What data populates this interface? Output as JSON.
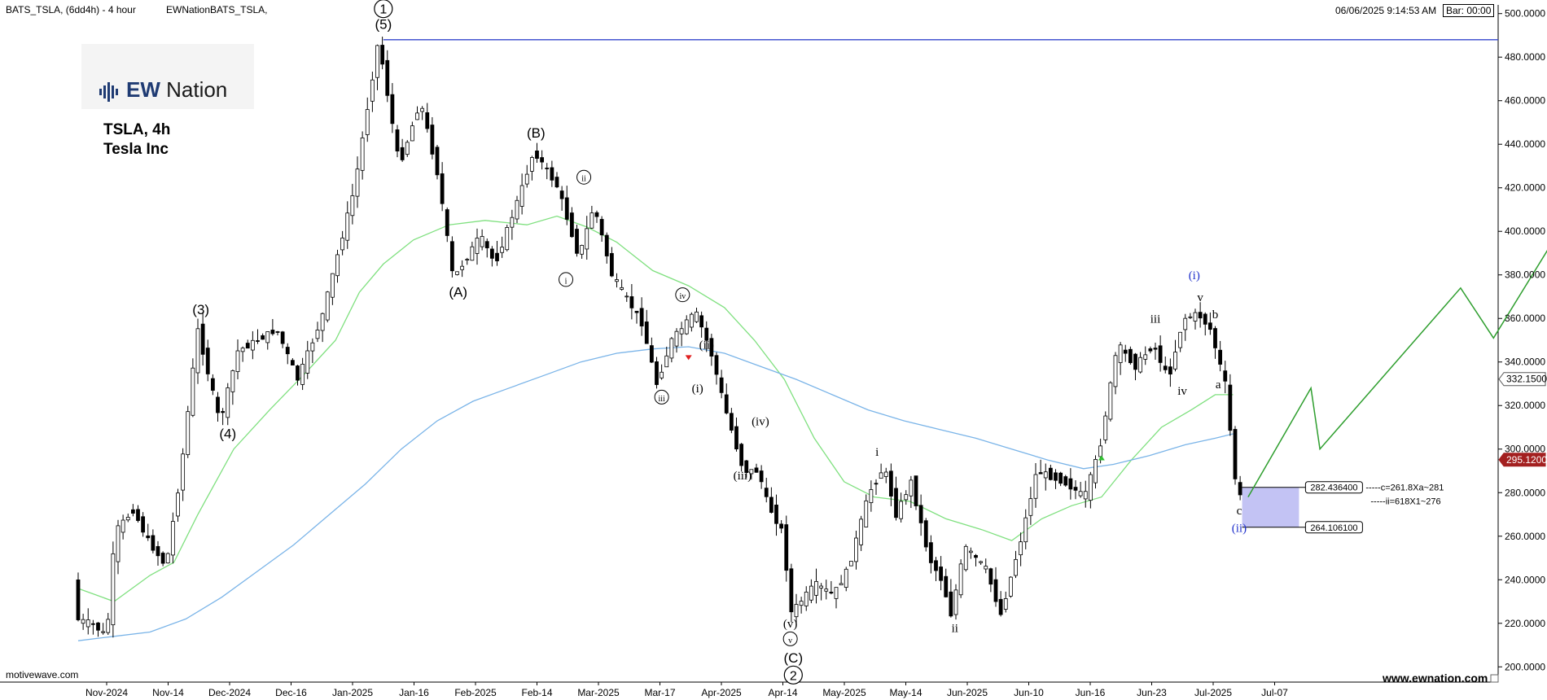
{
  "header": {
    "symbol": "BATS_TSLA, (6dd4h) - 4 hour",
    "source": "EWNationBATS_TSLA,",
    "datetime": "06/06/2025 9:14:53 AM",
    "bar_timer": "Bar: 00:00"
  },
  "logo": {
    "brand_ew": "EW",
    "brand_name": " Nation"
  },
  "ticker": {
    "line1": "TSLA, 4h",
    "line2": "Tesla Inc"
  },
  "footer": {
    "left": "motivewave.com",
    "right": "www.ewnation.com"
  },
  "colors": {
    "candle": "#000000",
    "ma_green": "#7fe07f",
    "ma_blue": "#7ab4e8",
    "projection": "#2e9e2e",
    "top_line": "#3344cc",
    "zone": "#b8b8f2",
    "current_price": "#a32020",
    "blue_label": "#2233cc"
  },
  "chart_data": {
    "type": "candlestick",
    "x_axis_labels": [
      "Nov-2024",
      "Nov-14",
      "Dec-2024",
      "Dec-16",
      "Jan-2025",
      "Jan-16",
      "Feb-2025",
      "Feb-14",
      "Mar-2025",
      "Mar-17",
      "Apr-2025",
      "Apr-14",
      "May-2025",
      "May-14",
      "Jun-2025",
      "Jun-10",
      "Jun-16",
      "Jun-23",
      "Jul-2025",
      "Jul-07"
    ],
    "y_axis_labels": [
      "500.0000",
      "480.0000",
      "460.0000",
      "440.0000",
      "420.0000",
      "400.0000",
      "380.0000",
      "360.0000",
      "340.0000",
      "320.0000",
      "300.0000",
      "280.0000",
      "260.0000",
      "240.0000",
      "220.0000",
      "200.0000"
    ],
    "ylim": [
      193,
      504
    ],
    "price_path": [
      {
        "t": 0,
        "p": 240
      },
      {
        "t": 0.02,
        "p": 222
      },
      {
        "t": 0.3,
        "p": 220
      },
      {
        "t": 0.56,
        "p": 214
      },
      {
        "t": 0.7,
        "p": 262
      },
      {
        "t": 1.0,
        "p": 272
      },
      {
        "t": 1.25,
        "p": 258
      },
      {
        "t": 1.55,
        "p": 246
      },
      {
        "t": 1.8,
        "p": 290
      },
      {
        "t": 2.08,
        "p": 355
      },
      {
        "t": 2.45,
        "p": 312
      },
      {
        "t": 2.75,
        "p": 345
      },
      {
        "t": 3.4,
        "p": 355
      },
      {
        "t": 3.75,
        "p": 332
      },
      {
        "t": 4.15,
        "p": 360
      },
      {
        "t": 4.7,
        "p": 420
      },
      {
        "t": 5.1,
        "p": 488
      },
      {
        "t": 5.45,
        "p": 430
      },
      {
        "t": 5.8,
        "p": 460
      },
      {
        "t": 6.1,
        "p": 425
      },
      {
        "t": 6.35,
        "p": 378
      },
      {
        "t": 6.8,
        "p": 398
      },
      {
        "t": 7.05,
        "p": 385
      },
      {
        "t": 7.5,
        "p": 420
      },
      {
        "t": 7.7,
        "p": 437
      },
      {
        "t": 8.1,
        "p": 420
      },
      {
        "t": 8.45,
        "p": 388
      },
      {
        "t": 8.7,
        "p": 412
      },
      {
        "t": 9.0,
        "p": 380
      },
      {
        "t": 9.5,
        "p": 358
      },
      {
        "t": 9.75,
        "p": 330
      },
      {
        "t": 10.0,
        "p": 350
      },
      {
        "t": 10.4,
        "p": 363
      },
      {
        "t": 10.65,
        "p": 345
      },
      {
        "t": 10.9,
        "p": 318
      },
      {
        "t": 11.2,
        "p": 290
      },
      {
        "t": 11.45,
        "p": 290
      },
      {
        "t": 11.6,
        "p": 275
      },
      {
        "t": 11.85,
        "p": 262
      },
      {
        "t": 12.0,
        "p": 225
      },
      {
        "t": 12.4,
        "p": 238
      },
      {
        "t": 12.7,
        "p": 233
      },
      {
        "t": 12.95,
        "p": 245
      },
      {
        "t": 13.3,
        "p": 280
      },
      {
        "t": 13.55,
        "p": 292
      },
      {
        "t": 13.75,
        "p": 270
      },
      {
        "t": 14.0,
        "p": 285
      },
      {
        "t": 14.3,
        "p": 250
      },
      {
        "t": 14.55,
        "p": 238
      },
      {
        "t": 14.65,
        "p": 222
      },
      {
        "t": 14.9,
        "p": 255
      },
      {
        "t": 15.25,
        "p": 245
      },
      {
        "t": 15.5,
        "p": 224
      },
      {
        "t": 15.85,
        "p": 260
      },
      {
        "t": 16.1,
        "p": 290
      },
      {
        "t": 16.55,
        "p": 285
      },
      {
        "t": 16.9,
        "p": 278
      },
      {
        "t": 17.15,
        "p": 300
      },
      {
        "t": 17.45,
        "p": 348
      },
      {
        "t": 17.75,
        "p": 338
      },
      {
        "t": 18.05,
        "p": 348
      },
      {
        "t": 18.3,
        "p": 332
      },
      {
        "t": 18.55,
        "p": 360
      },
      {
        "t": 18.8,
        "p": 362
      },
      {
        "t": 19.0,
        "p": 355
      },
      {
        "t": 19.25,
        "p": 330
      },
      {
        "t": 19.45,
        "p": 278
      }
    ],
    "ma_green": [
      {
        "t": 0,
        "p": 236
      },
      {
        "t": 0.6,
        "p": 230
      },
      {
        "t": 1.2,
        "p": 242
      },
      {
        "t": 1.6,
        "p": 248
      },
      {
        "t": 2.0,
        "p": 270
      },
      {
        "t": 2.6,
        "p": 300
      },
      {
        "t": 3.2,
        "p": 318
      },
      {
        "t": 3.8,
        "p": 335
      },
      {
        "t": 4.3,
        "p": 350
      },
      {
        "t": 4.7,
        "p": 372
      },
      {
        "t": 5.1,
        "p": 385
      },
      {
        "t": 5.6,
        "p": 396
      },
      {
        "t": 6.2,
        "p": 403
      },
      {
        "t": 6.8,
        "p": 405
      },
      {
        "t": 7.5,
        "p": 403
      },
      {
        "t": 8.0,
        "p": 407
      },
      {
        "t": 8.5,
        "p": 402
      },
      {
        "t": 9.0,
        "p": 395
      },
      {
        "t": 9.6,
        "p": 382
      },
      {
        "t": 10.2,
        "p": 375
      },
      {
        "t": 10.8,
        "p": 365
      },
      {
        "t": 11.3,
        "p": 350
      },
      {
        "t": 11.8,
        "p": 332
      },
      {
        "t": 12.3,
        "p": 305
      },
      {
        "t": 12.8,
        "p": 285
      },
      {
        "t": 13.3,
        "p": 278
      },
      {
        "t": 13.9,
        "p": 276
      },
      {
        "t": 14.5,
        "p": 268
      },
      {
        "t": 15.1,
        "p": 263
      },
      {
        "t": 15.6,
        "p": 258
      },
      {
        "t": 16.1,
        "p": 268
      },
      {
        "t": 16.6,
        "p": 274
      },
      {
        "t": 17.1,
        "p": 278
      },
      {
        "t": 17.6,
        "p": 295
      },
      {
        "t": 18.1,
        "p": 310
      },
      {
        "t": 18.6,
        "p": 318
      },
      {
        "t": 19.0,
        "p": 325
      },
      {
        "t": 19.3,
        "p": 325
      }
    ],
    "ma_blue": [
      {
        "t": 0,
        "p": 212
      },
      {
        "t": 0.6,
        "p": 214
      },
      {
        "t": 1.2,
        "p": 216
      },
      {
        "t": 1.8,
        "p": 222
      },
      {
        "t": 2.4,
        "p": 232
      },
      {
        "t": 3.0,
        "p": 244
      },
      {
        "t": 3.6,
        "p": 256
      },
      {
        "t": 4.2,
        "p": 270
      },
      {
        "t": 4.8,
        "p": 284
      },
      {
        "t": 5.4,
        "p": 300
      },
      {
        "t": 6.0,
        "p": 313
      },
      {
        "t": 6.6,
        "p": 322
      },
      {
        "t": 7.2,
        "p": 328
      },
      {
        "t": 7.8,
        "p": 334
      },
      {
        "t": 8.4,
        "p": 340
      },
      {
        "t": 9.0,
        "p": 344
      },
      {
        "t": 9.6,
        "p": 346
      },
      {
        "t": 10.2,
        "p": 347
      },
      {
        "t": 10.8,
        "p": 344
      },
      {
        "t": 11.4,
        "p": 338
      },
      {
        "t": 12.0,
        "p": 332
      },
      {
        "t": 12.6,
        "p": 325
      },
      {
        "t": 13.2,
        "p": 318
      },
      {
        "t": 13.8,
        "p": 313
      },
      {
        "t": 14.4,
        "p": 309
      },
      {
        "t": 15.0,
        "p": 305
      },
      {
        "t": 15.6,
        "p": 300
      },
      {
        "t": 16.2,
        "p": 295
      },
      {
        "t": 16.8,
        "p": 291
      },
      {
        "t": 17.3,
        "p": 293
      },
      {
        "t": 17.9,
        "p": 297
      },
      {
        "t": 18.5,
        "p": 302
      },
      {
        "t": 19.0,
        "p": 305
      },
      {
        "t": 19.3,
        "p": 307
      }
    ],
    "projection": [
      {
        "t": 19.55,
        "p": 278
      },
      {
        "t": 20.6,
        "p": 328
      },
      {
        "t": 20.75,
        "p": 300
      },
      {
        "t": 23.1,
        "p": 374
      },
      {
        "t": 23.65,
        "p": 351
      },
      {
        "t": 25.15,
        "p": 418
      }
    ],
    "top_line": {
      "price": 488,
      "t_start": 5.1,
      "t_end": 27.5
    },
    "target_zone": {
      "t_start": 19.45,
      "t_end": 20.4,
      "top": 282.4364,
      "bottom": 264.1061,
      "top_label": "282.436400",
      "bottom_label": "264.106100"
    },
    "zone_notes": [
      "-----c=261.8Xa~281",
      "-----ii=618X1~276"
    ],
    "price_tags": [
      {
        "price": 332.15,
        "label": "332.1500",
        "style": "gray"
      },
      {
        "price": 295.12,
        "label": "295.1200",
        "style": "red"
      }
    ],
    "markers": [
      {
        "t": 10.2,
        "p": 342,
        "shape": "down-triangle",
        "color": "#e02020"
      },
      {
        "t": 17.1,
        "p": 296,
        "shape": "up-triangle",
        "color": "#30c030"
      }
    ],
    "wave_labels": [
      {
        "text": "1",
        "t": 5.1,
        "p": 500,
        "style": "circle-lg"
      },
      {
        "text": "(5)",
        "t": 5.1,
        "p": 493,
        "style": "paren"
      },
      {
        "text": "(3)",
        "t": 2.05,
        "p": 362,
        "style": "paren"
      },
      {
        "text": "(4)",
        "t": 2.5,
        "p": 305,
        "style": "paren"
      },
      {
        "text": "(A)",
        "t": 6.35,
        "p": 370,
        "style": "paren"
      },
      {
        "text": "(B)",
        "t": 7.65,
        "p": 443,
        "style": "paren"
      },
      {
        "text": "ii",
        "t": 8.45,
        "p": 423,
        "style": "circle"
      },
      {
        "text": "i",
        "t": 8.15,
        "p": 376,
        "style": "circle"
      },
      {
        "text": "iv",
        "t": 10.1,
        "p": 369,
        "style": "circle"
      },
      {
        "text": "iii",
        "t": 9.75,
        "p": 322,
        "style": "circle"
      },
      {
        "text": "(ii)",
        "t": 10.5,
        "p": 346,
        "style": "paren-sm"
      },
      {
        "text": "(i)",
        "t": 10.35,
        "p": 326,
        "style": "paren-sm"
      },
      {
        "text": "(iv)",
        "t": 11.4,
        "p": 311,
        "style": "paren-sm"
      },
      {
        "text": "(iii)",
        "t": 11.1,
        "p": 286,
        "style": "paren-sm"
      },
      {
        "text": "(v)",
        "t": 11.9,
        "p": 218,
        "style": "paren-sm"
      },
      {
        "text": "v",
        "t": 11.9,
        "p": 211,
        "style": "circle"
      },
      {
        "text": "(C)",
        "t": 11.95,
        "p": 202,
        "style": "paren"
      },
      {
        "text": "2",
        "t": 11.95,
        "p": 194,
        "style": "circle-lg"
      },
      {
        "text": "i",
        "t": 13.35,
        "p": 297,
        "style": "roman"
      },
      {
        "text": "ii",
        "t": 14.65,
        "p": 216,
        "style": "roman"
      },
      {
        "text": "iii",
        "t": 18.0,
        "p": 358,
        "style": "roman"
      },
      {
        "text": "iv",
        "t": 18.45,
        "p": 325,
        "style": "roman"
      },
      {
        "text": "(i)",
        "t": 18.65,
        "p": 378,
        "style": "blue"
      },
      {
        "text": "v",
        "t": 18.75,
        "p": 368,
        "style": "roman"
      },
      {
        "text": "b",
        "t": 19.0,
        "p": 360,
        "style": "roman"
      },
      {
        "text": "a",
        "t": 19.05,
        "p": 328,
        "style": "roman"
      },
      {
        "text": "c",
        "t": 19.4,
        "p": 270,
        "style": "roman"
      },
      {
        "text": "(ii)",
        "t": 19.4,
        "p": 262,
        "style": "blue"
      },
      {
        "text": "(iii)",
        "t": 25.15,
        "p": 422,
        "style": "blue"
      }
    ]
  }
}
